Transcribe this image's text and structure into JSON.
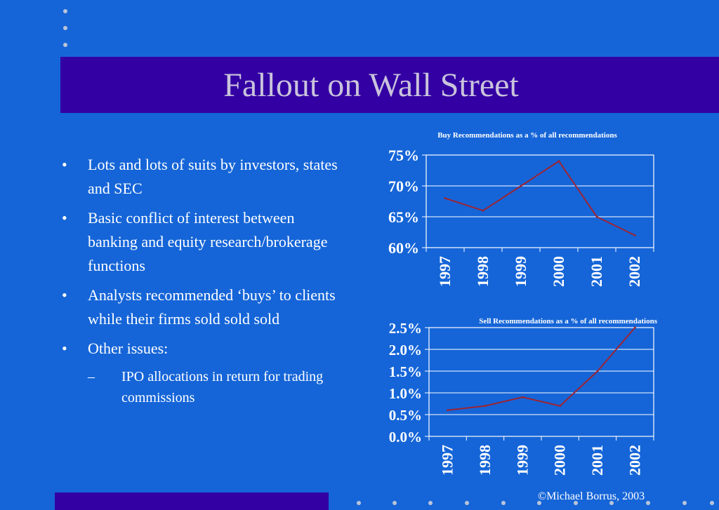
{
  "slide": {
    "title": "Fallout on Wall Street",
    "bullets": [
      "Lots and lots of suits by investors, states and SEC",
      "Basic conflict of interest between banking and equity research/brokerage functions",
      "Analysts recommended ‘buys’ to clients while their firms sold sold sold",
      "Other issues:"
    ],
    "sub_bullets": [
      "IPO allocations in return for trading commissions"
    ],
    "footer": "©Michael Borrus, 2003"
  },
  "chart_data": [
    {
      "type": "line",
      "title": "Buy Recommendations as a % of all recommendations",
      "categories": [
        "1997",
        "1998",
        "1999",
        "2000",
        "2001",
        "2002"
      ],
      "series": [
        {
          "values": [
            68,
            66,
            70,
            74,
            65,
            62
          ]
        }
      ],
      "yticks": [
        "60%",
        "65%",
        "70%",
        "75%"
      ],
      "ylim": [
        60,
        75
      ],
      "grid": true,
      "line_color": "#9c2435"
    },
    {
      "type": "line",
      "title": "Sell Recommendations as a % of all recommendations",
      "categories": [
        "1997",
        "1998",
        "1999",
        "2000",
        "2001",
        "2002"
      ],
      "series": [
        {
          "values": [
            0.6,
            0.7,
            0.9,
            0.7,
            1.5,
            2.5
          ]
        }
      ],
      "yticks": [
        "0.0%",
        "0.5%",
        "1.0%",
        "1.5%",
        "2.0%",
        "2.5%"
      ],
      "ylim": [
        0,
        2.5
      ],
      "grid": true,
      "line_color": "#9c2435"
    }
  ]
}
